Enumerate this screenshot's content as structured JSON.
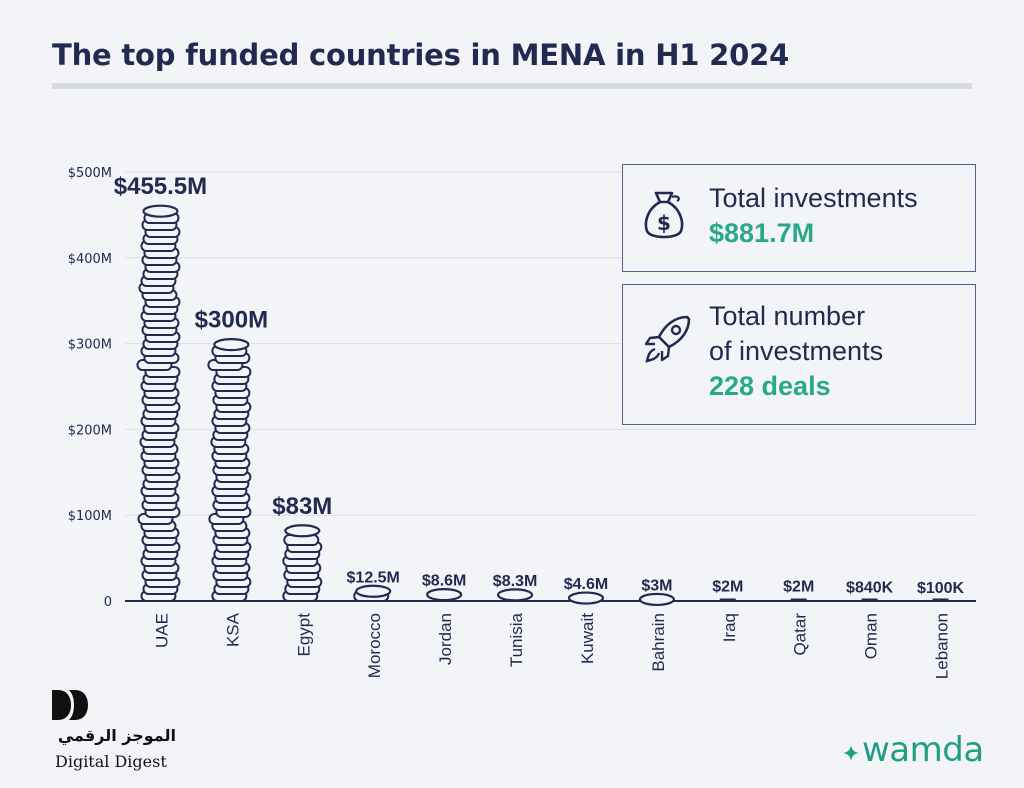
{
  "title": "The top funded countries in MENA in H1 2024",
  "chart_data": {
    "type": "bar",
    "title": "The top funded countries in MENA in H1 2024",
    "categories": [
      "UAE",
      "KSA",
      "Egypt",
      "Morocco",
      "Jordan",
      "Tunisia",
      "Kuwait",
      "Bahrain",
      "Iraq",
      "Qatar",
      "Oman",
      "Lebanon"
    ],
    "values_musd": [
      455.5,
      300,
      83,
      12.5,
      8.6,
      8.3,
      4.6,
      3,
      2,
      2,
      0.84,
      0.1
    ],
    "value_labels": [
      "$455.5M",
      "$300M",
      "$83M",
      "$12.5M",
      "$8.6M",
      "$8.3M",
      "$4.6M",
      "$3M",
      "$2M",
      "$2M",
      "$840K",
      "$100K"
    ],
    "y_ticks": [
      0,
      100,
      200,
      300,
      400,
      500
    ],
    "y_tick_labels": [
      "0",
      "$100M",
      "$200M",
      "$300M",
      "$400M",
      "$500M"
    ],
    "ylim": [
      0,
      500
    ],
    "grid": true,
    "bar_style": "stacked-coins"
  },
  "stats": {
    "total_investments_label": "Total investments",
    "total_investments_value": "$881.7M",
    "total_number_label_line1": "Total number",
    "total_number_label_line2": "of investments",
    "total_number_value": "228 deals"
  },
  "branding": {
    "digital_digest_arabic": "الموجز الرقمي",
    "digital_digest_english": "Digital Digest",
    "wamda": "wamda"
  },
  "colors": {
    "navy": "#232a4f",
    "teal": "#2aa88a",
    "background": "#f3f4f8",
    "grid": "#dcdee6"
  },
  "icons": {
    "investments": "money-bag-icon",
    "deals": "rocket-icon"
  }
}
